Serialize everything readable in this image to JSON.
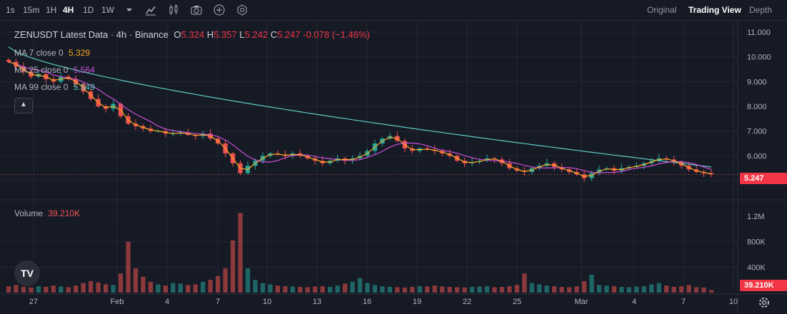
{
  "toolbar": {
    "intervals": [
      "1s",
      "15m",
      "1H",
      "4H",
      "1D",
      "1W"
    ],
    "active_interval": "4H",
    "views": [
      "Original",
      "Trading View",
      "Depth"
    ],
    "active_view": "Trading View"
  },
  "legend": {
    "title": "ZENUSDT Latest Data · 4h · Binance",
    "open_label": "O",
    "open": "5.324",
    "high_label": "H",
    "high": "5.357",
    "low_label": "L",
    "low": "5.242",
    "close_label": "C",
    "close": "5.247",
    "change": "-0.078 (−1.46%)",
    "ma7_label": "MA 7 close 0",
    "ma7_value": "5.329",
    "ma25_label": "MA 25 close 0",
    "ma25_value": "5.564",
    "ma99_label": "MA 99 close 0",
    "ma99_value": "5.549",
    "volume_label": "Volume",
    "volume_value": "39.210K"
  },
  "colors": {
    "up": "#26a69a",
    "down": "#ef5350",
    "ma7": "#f5a623",
    "ma25": "#c94fd6",
    "ma99": "#5fc9c3",
    "grid": "#232734",
    "text": "#b2b5be"
  },
  "chart_data": {
    "type": "candlestick",
    "price_axis_ticks": [
      "11.000",
      "10.000",
      "9.000",
      "8.000",
      "7.000",
      "6.000",
      "5.000"
    ],
    "price_ylim": [
      4.8,
      11.2
    ],
    "volume_axis_ticks": [
      "1.2M",
      "800K",
      "400K"
    ],
    "volume_ylim": [
      0,
      1300000
    ],
    "x_labels": [
      "27",
      "Feb",
      "4",
      "7",
      "10",
      "13",
      "16",
      "19",
      "22",
      "25",
      "Mar",
      "4",
      "7",
      "10"
    ],
    "last_price": "5.247",
    "last_volume": "39.210K",
    "close_series": [
      9.8,
      9.6,
      9.4,
      9.2,
      9.3,
      9.1,
      9.0,
      9.2,
      9.1,
      8.9,
      8.6,
      8.3,
      8.0,
      7.9,
      8.1,
      7.6,
      7.3,
      7.2,
      7.1,
      7.0,
      7.0,
      6.9,
      6.9,
      6.95,
      6.85,
      6.8,
      6.9,
      6.7,
      6.5,
      6.1,
      5.7,
      5.3,
      5.6,
      5.8,
      6.0,
      6.1,
      6.05,
      6.0,
      6.1,
      6.0,
      5.9,
      5.8,
      5.7,
      5.8,
      5.9,
      5.8,
      5.9,
      6.0,
      6.2,
      6.5,
      6.7,
      6.8,
      6.6,
      6.3,
      6.2,
      6.3,
      6.25,
      6.2,
      6.1,
      6.0,
      5.8,
      5.7,
      5.75,
      5.8,
      5.9,
      5.85,
      5.7,
      5.5,
      5.4,
      5.35,
      5.5,
      5.6,
      5.7,
      5.55,
      5.45,
      5.35,
      5.25,
      5.1,
      5.3,
      5.45,
      5.5,
      5.4,
      5.5,
      5.55,
      5.6,
      5.7,
      5.8,
      5.9,
      5.85,
      5.75,
      5.6,
      5.45,
      5.35,
      5.3,
      5.25
    ],
    "volume_series": [
      100000,
      120000,
      90000,
      80000,
      100000,
      90000,
      110000,
      95000,
      85000,
      110000,
      150000,
      180000,
      160000,
      130000,
      120000,
      300000,
      800000,
      380000,
      250000,
      170000,
      130000,
      110000,
      150000,
      140000,
      120000,
      130000,
      170000,
      200000,
      260000,
      380000,
      820000,
      1250000,
      380000,
      200000,
      150000,
      130000,
      110000,
      100000,
      95000,
      90000,
      85000,
      95000,
      100000,
      90000,
      110000,
      140000,
      170000,
      230000,
      150000,
      120000,
      100000,
      90000,
      85000,
      80000,
      90000,
      100000,
      95000,
      110000,
      95000,
      90000,
      85000,
      80000,
      90000,
      95000,
      100000,
      85000,
      90000,
      100000,
      120000,
      300000,
      150000,
      130000,
      110000,
      100000,
      90000,
      85000,
      100000,
      180000,
      280000,
      120000,
      110000,
      100000,
      90000,
      85000,
      95000,
      100000,
      130000,
      150000,
      110000,
      90000,
      100000,
      120000,
      85000,
      80000,
      39210
    ]
  }
}
